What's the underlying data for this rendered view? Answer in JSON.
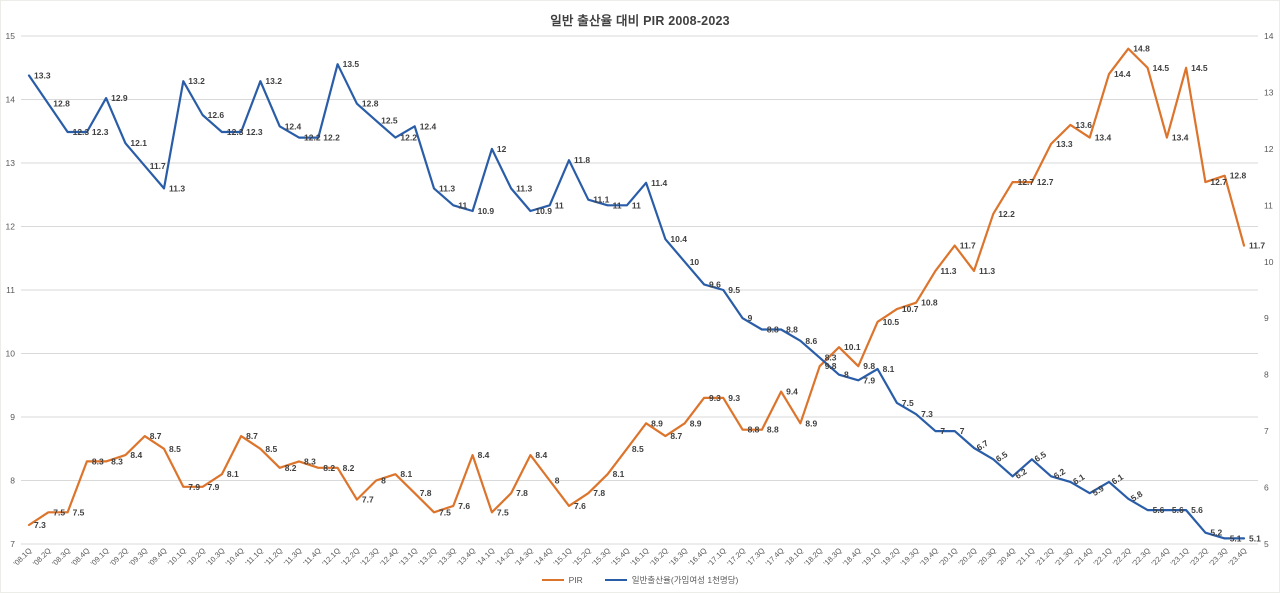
{
  "title": "일반 출산율 대비 PIR 2008-2023",
  "legend": {
    "items": [
      {
        "label": "PIR",
        "color": "#DC742C"
      },
      {
        "label": "일반출산율(가임여성 1천명당)",
        "color": "#2A5DA8"
      }
    ]
  },
  "chart_data": {
    "type": "line",
    "title": "일반 출산율 대비 PIR 2008-2023",
    "grid": true,
    "legend_position": "bottom",
    "categories": [
      "'08.1Q",
      "'08.2Q",
      "'08.3Q",
      "'08.4Q",
      "'09.1Q",
      "'09.2Q",
      "'09.3Q",
      "'09.4Q",
      "'10.1Q",
      "'10.2Q",
      "'10.3Q",
      "'10.4Q",
      "'11.1Q",
      "'11.2Q",
      "'11.3Q",
      "'11.4Q",
      "'12.1Q",
      "'12.2Q",
      "'12.3Q",
      "'12.4Q",
      "'13.1Q",
      "'13.2Q",
      "'13.3Q",
      "'13.4Q",
      "'14.1Q",
      "'14.2Q",
      "'14.3Q",
      "'14.4Q",
      "'15.1Q",
      "'15.2Q",
      "'15.3Q",
      "'15.4Q",
      "'16.1Q",
      "'16.2Q",
      "'16.3Q",
      "'16.4Q",
      "'17.1Q",
      "'17.2Q",
      "'17.3Q",
      "'17.4Q",
      "'18.1Q",
      "'18.2Q",
      "'18.3Q",
      "'18.4Q",
      "'19.1Q",
      "'19.2Q",
      "'19.3Q",
      "'19.4Q",
      "'20.1Q",
      "'20.2Q",
      "'20.3Q",
      "'20.4Q",
      "'21.1Q",
      "'21.2Q",
      "'21.3Q",
      "'21.4Q",
      "'22.1Q",
      "'22.2Q",
      "'22.3Q",
      "'22.4Q",
      "'23.1Q",
      "'23.2Q",
      "'23.3Q",
      "'23.4Q"
    ],
    "series": [
      {
        "name": "PIR",
        "axis": "left",
        "color": "#DC742C",
        "values": [
          7.3,
          7.5,
          7.5,
          8.3,
          8.3,
          8.4,
          8.7,
          8.5,
          7.9,
          7.9,
          8.1,
          8.7,
          8.5,
          8.2,
          8.3,
          8.2,
          8.2,
          7.7,
          8,
          8.1,
          7.8,
          7.5,
          7.6,
          8.4,
          7.5,
          7.8,
          8.4,
          8,
          7.6,
          7.8,
          8.1,
          8.5,
          8.9,
          8.7,
          8.9,
          9.3,
          9.3,
          8.8,
          8.8,
          9.4,
          8.9,
          9.8,
          10.1,
          9.8,
          10.5,
          10.7,
          10.8,
          11.3,
          11.7,
          11.3,
          12.2,
          12.7,
          12.7,
          13.3,
          13.6,
          13.4,
          14.4,
          14.8,
          14.5,
          13.4,
          14.5,
          12.7,
          12.8,
          11.7
        ],
        "rotated_label_indices": []
      },
      {
        "name": "일반출산율(가임여성 1천명당)",
        "axis": "right",
        "color": "#2A5DA8",
        "values": [
          13.3,
          12.8,
          12.3,
          12.3,
          12.9,
          12.1,
          11.7,
          11.3,
          13.2,
          12.6,
          12.3,
          12.3,
          13.2,
          12.4,
          12.2,
          12.2,
          13.5,
          12.8,
          12.5,
          12.2,
          12.4,
          11.3,
          11,
          10.9,
          12,
          11.3,
          10.9,
          11,
          11.8,
          11.1,
          11,
          11,
          11.4,
          10.4,
          10,
          9.6,
          9.5,
          9,
          8.8,
          8.8,
          8.6,
          8.3,
          8,
          7.9,
          8.1,
          7.5,
          7.3,
          7,
          7,
          6.7,
          6.5,
          6.2,
          6.5,
          6.2,
          6.1,
          5.9,
          6.1,
          5.8,
          5.6,
          5.6,
          5.6,
          5.2,
          5.1,
          5.1
        ],
        "rotated_label_indices": [
          49,
          50,
          51,
          52,
          53,
          54,
          55,
          56,
          57
        ]
      }
    ],
    "left_axis": {
      "min": 7,
      "max": 15,
      "ticks": [
        15,
        14,
        13,
        12,
        11,
        10,
        9,
        8,
        7
      ]
    },
    "right_axis": {
      "min": 5,
      "max": 14,
      "ticks": [
        14,
        13,
        12,
        11,
        10,
        9,
        8,
        7,
        6,
        5
      ]
    },
    "colors": {
      "grid": "#D9D9D9",
      "axis_text": "#595959",
      "data_label": "#3F3F3F",
      "background": "#FFFFFF"
    }
  }
}
